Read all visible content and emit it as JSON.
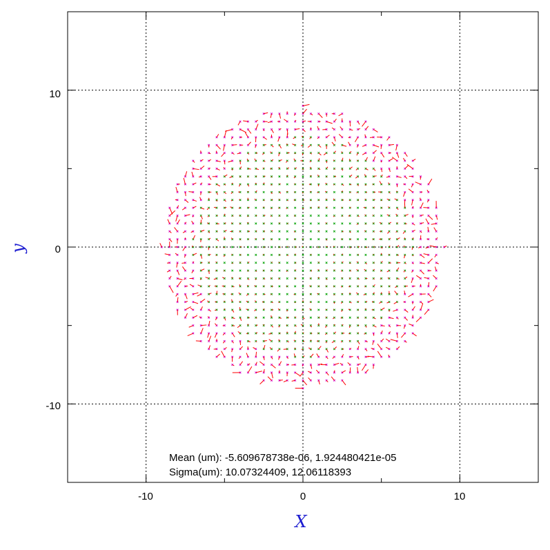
{
  "chart_data": {
    "type": "scatter",
    "subtype": "vector-field (quiver) of per-point residual offsets over a circular grid",
    "xlabel": "X",
    "ylabel": "y",
    "xlim": [
      -15,
      15
    ],
    "ylim": [
      -15,
      15
    ],
    "x_ticks": [
      -10,
      0,
      10
    ],
    "y_ticks": [
      -10,
      0,
      10
    ],
    "x_tick_labels": [
      "-10",
      "0",
      "10"
    ],
    "y_tick_labels": [
      "-10",
      "0",
      "10"
    ],
    "grid": true,
    "grid_style": "dotted",
    "grid_spacing": 0.5,
    "field_radius": 9.0,
    "marker_colors": {
      "inner": "#00a000",
      "outer": "#d000d0",
      "vector": "#ff0000"
    },
    "annotations": [
      "Mean (um): -5.609678738e-06, 1.924480421e-05",
      "Sigma(um): 10.07324409, 12.06118393"
    ]
  },
  "colors": {
    "axis": "#000000",
    "axis_title": "#1c1cd0",
    "background": "#ffffff"
  }
}
